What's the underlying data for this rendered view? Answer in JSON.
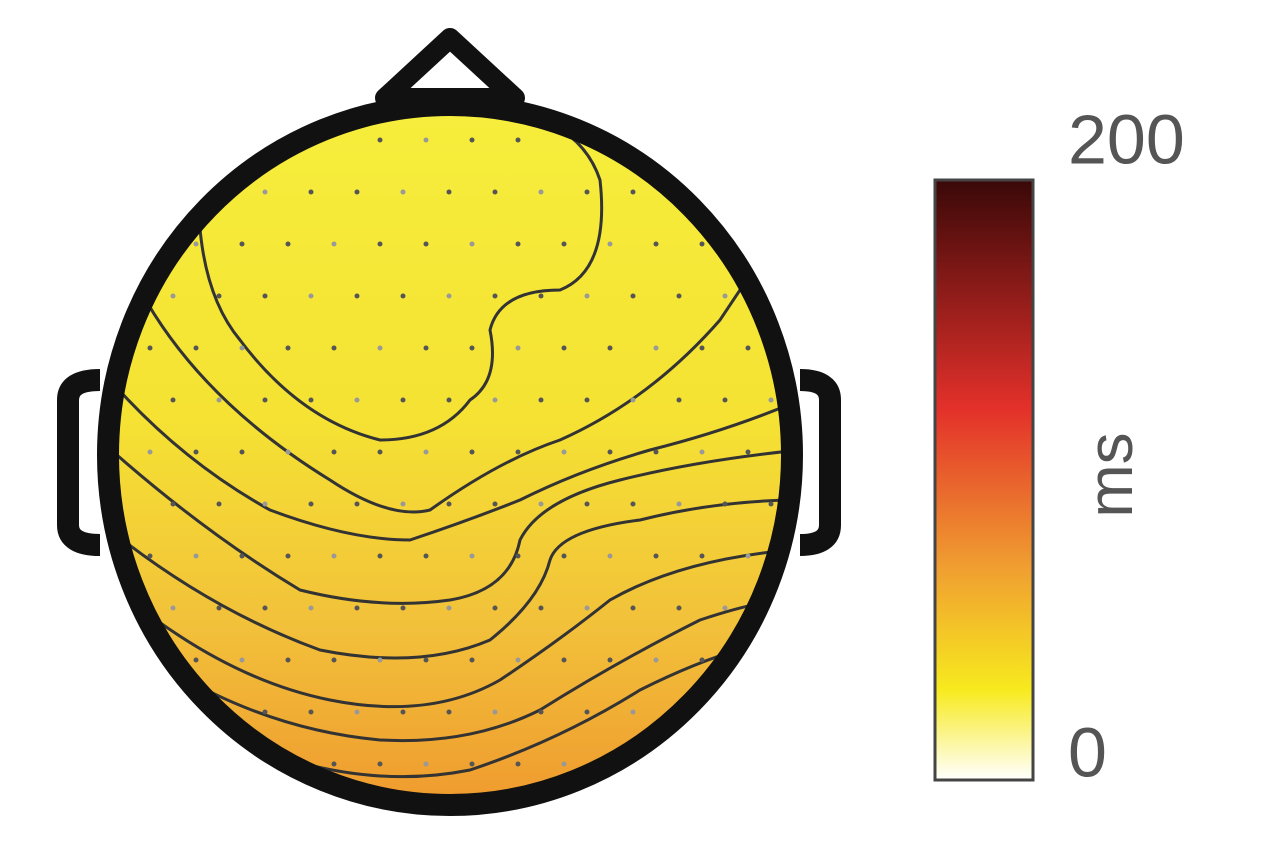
{
  "chart_data": {
    "type": "topomap",
    "colorbar_label": "ms",
    "clim": [
      0,
      200
    ],
    "cticks": [
      0,
      200
    ],
    "colormap": [
      "#ffffff",
      "#f7ea1e",
      "#f0a030",
      "#e3302a",
      "#3a0808"
    ]
  }
}
